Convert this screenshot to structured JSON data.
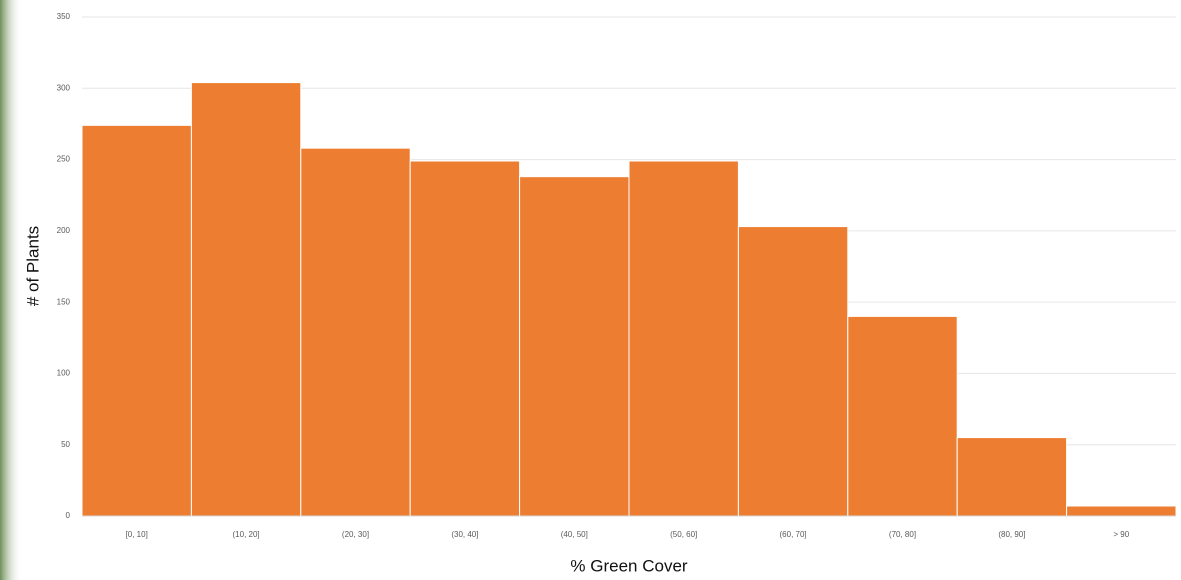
{
  "chart_data": {
    "type": "bar",
    "x_label": "% Green Cover",
    "y_label": "# of Plants",
    "categories": [
      "[0, 10]",
      "(10, 20]",
      "(20, 30]",
      "(30, 40]",
      "(40, 50]",
      "(50, 60]",
      "(60, 70]",
      "(70, 80]",
      "(80, 90]",
      "> 90"
    ],
    "values": [
      274,
      304,
      258,
      249,
      238,
      249,
      203,
      140,
      55,
      7
    ],
    "color": "#ed7d31",
    "ylim": [
      0,
      350
    ],
    "yticks": [
      0,
      50,
      100,
      150,
      200,
      250,
      300,
      350
    ],
    "grid": true
  }
}
